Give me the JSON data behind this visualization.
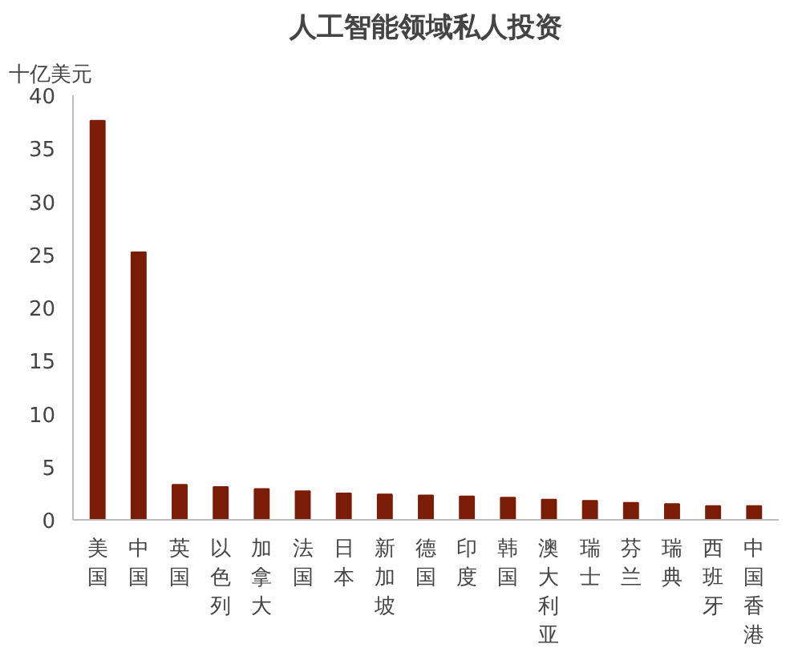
{
  "chart_data": {
    "type": "bar",
    "title": "人工智能领域私人投资",
    "ylabel": "十亿美元",
    "categories": [
      "美国",
      "中国",
      "英国",
      "以色列",
      "加拿大",
      "法国",
      "日本",
      "新加坡",
      "德国",
      "印度",
      "韩国",
      "澳大利亚",
      "瑞士",
      "芬兰",
      "瑞典",
      "西班牙",
      "中国香港"
    ],
    "values": [
      37.6,
      25.2,
      3.3,
      3.1,
      2.9,
      2.7,
      2.5,
      2.4,
      2.3,
      2.2,
      2.1,
      1.9,
      1.8,
      1.6,
      1.5,
      1.3,
      1.3
    ],
    "color": "#7b1c06",
    "ylim": [
      0,
      40
    ],
    "yticks": [
      0,
      5,
      10,
      15,
      20,
      25,
      30,
      35,
      40
    ],
    "grid": false
  }
}
